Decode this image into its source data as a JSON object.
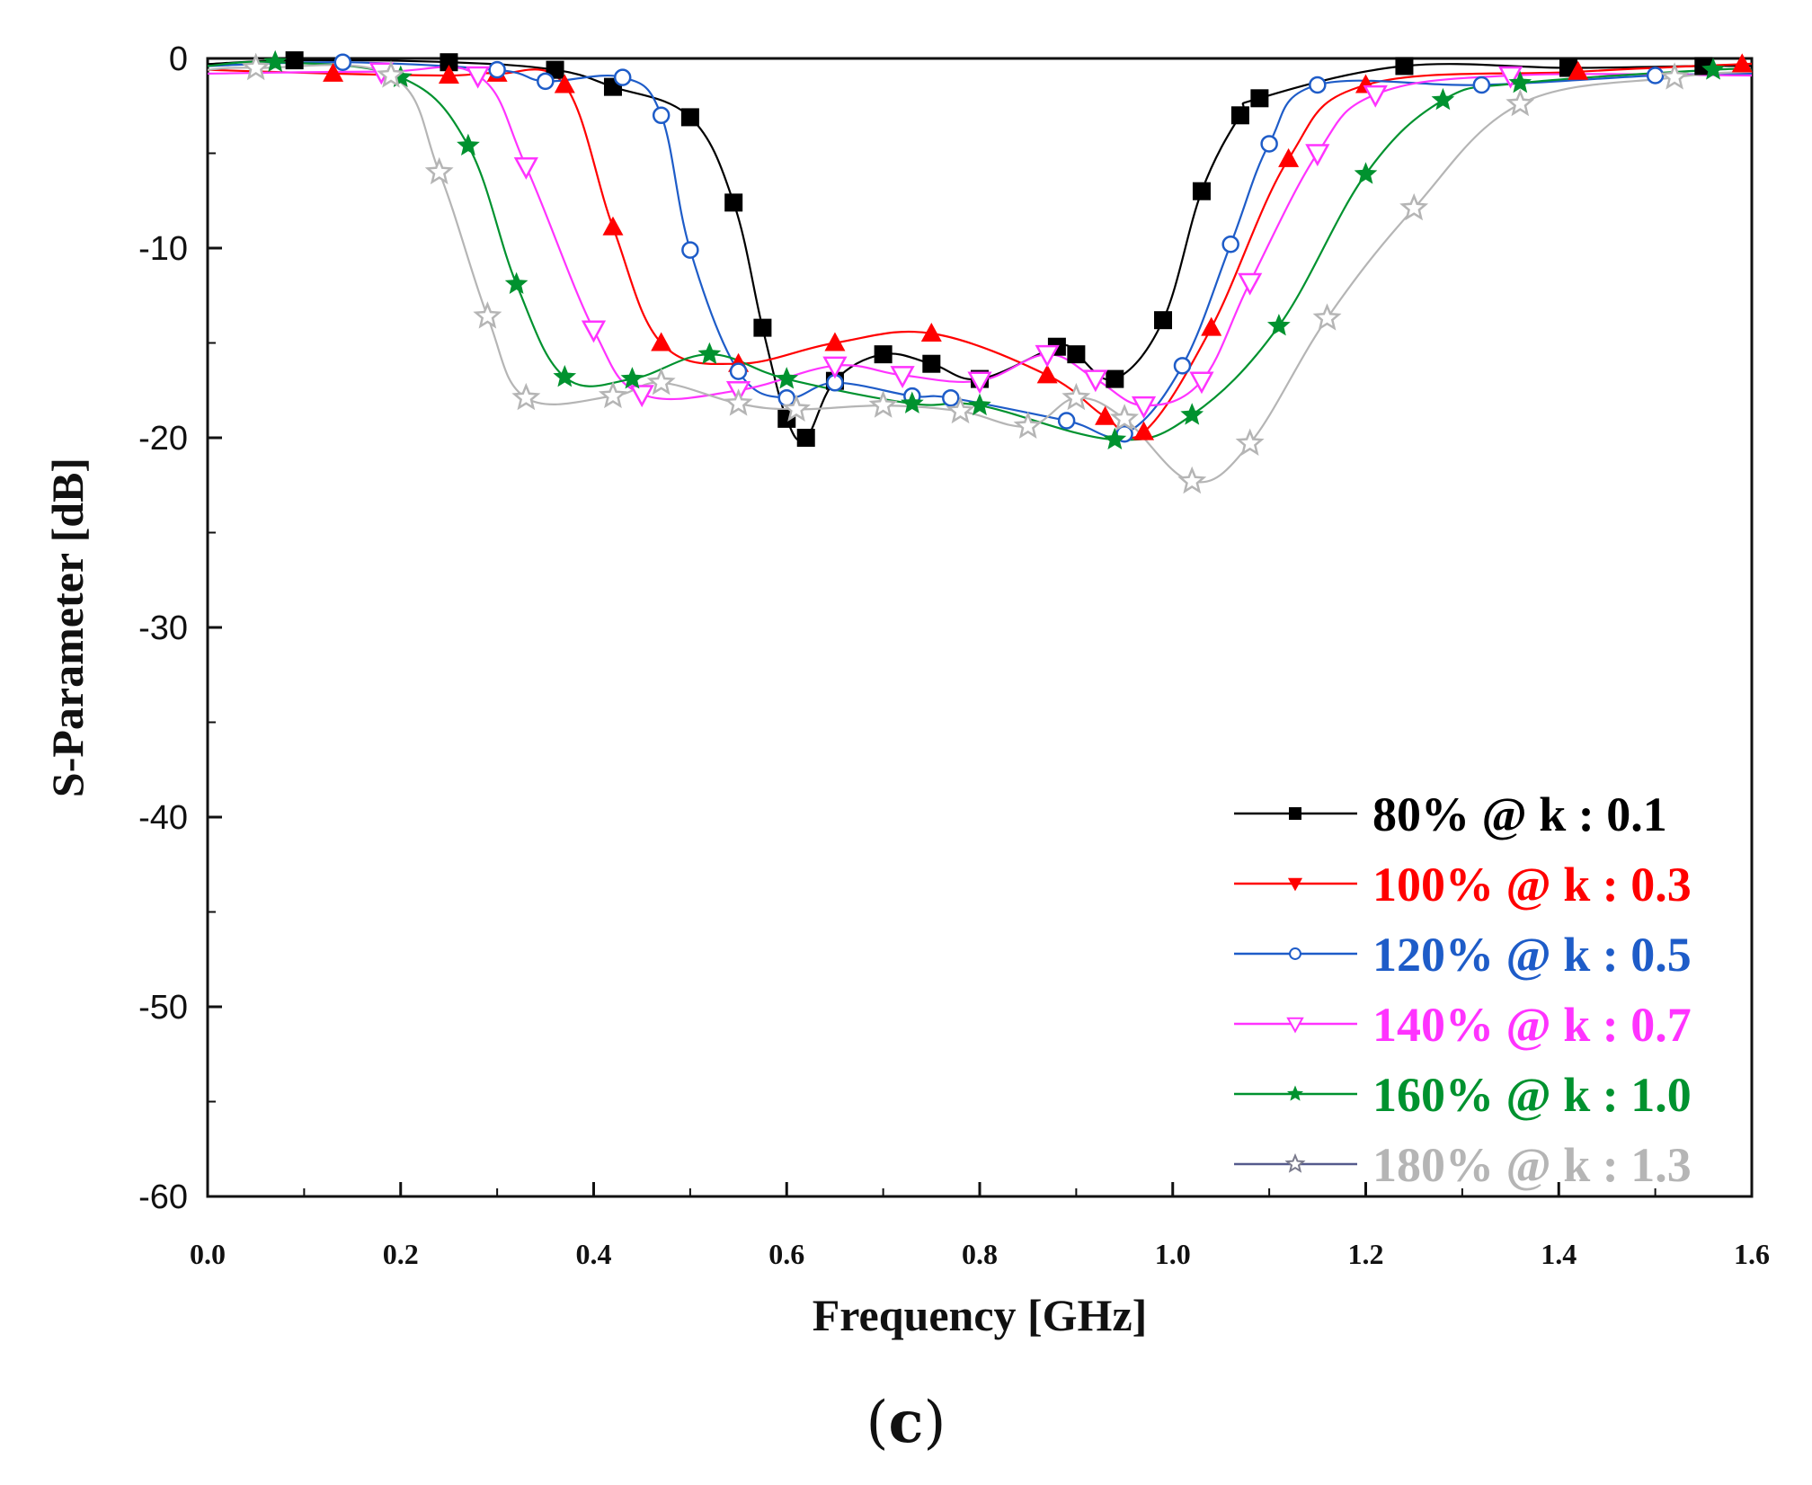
{
  "caption": {
    "open": "(",
    "letter": "c",
    "close": ")"
  },
  "chart_data": {
    "type": "line",
    "title": "",
    "xlabel": "Frequency [GHz]",
    "ylabel": "S-Parameter [dB]",
    "xlim": [
      0.0,
      1.6
    ],
    "ylim": [
      -60,
      0
    ],
    "x_ticks": [
      "0.0",
      "0.2",
      "0.4",
      "0.6",
      "0.8",
      "1.0",
      "1.2",
      "1.4",
      "1.6"
    ],
    "y_ticks": [
      "0",
      "-10",
      "-20",
      "-30",
      "-40",
      "-50",
      "-60"
    ],
    "legend_position": "bottom-right",
    "series": [
      {
        "name": "80% @ k : 0.1",
        "color": "#000000",
        "marker": "square",
        "x": [
          0.0,
          0.09,
          0.25,
          0.36,
          0.42,
          0.5,
          0.545,
          0.575,
          0.6,
          0.62,
          0.65,
          0.7,
          0.75,
          0.8,
          0.88,
          0.9,
          0.94,
          0.99,
          1.03,
          1.07,
          1.09,
          1.24,
          1.41,
          1.55,
          1.6
        ],
        "y": [
          -0.3,
          -0.1,
          -0.2,
          -0.6,
          -1.5,
          -3.1,
          -7.6,
          -14.2,
          -19.0,
          -20.0,
          -17.0,
          -15.6,
          -16.1,
          -16.9,
          -15.2,
          -15.6,
          -16.9,
          -13.8,
          -7.0,
          -3.0,
          -2.1,
          -0.4,
          -0.5,
          -0.4,
          -0.4
        ]
      },
      {
        "name": "100% @ k : 0.3",
        "color": "#ff0000",
        "marker": "triangle-up",
        "x": [
          0.0,
          0.13,
          0.25,
          0.3,
          0.37,
          0.42,
          0.47,
          0.55,
          0.65,
          0.75,
          0.87,
          0.93,
          0.97,
          1.04,
          1.12,
          1.2,
          1.42,
          1.59,
          1.6
        ],
        "y": [
          -0.6,
          -0.8,
          -0.9,
          -0.8,
          -1.4,
          -8.9,
          -15.0,
          -16.1,
          -15.0,
          -14.5,
          -16.7,
          -18.9,
          -19.7,
          -14.2,
          -5.3,
          -1.4,
          -0.7,
          -0.3,
          -0.3
        ]
      },
      {
        "name": "120% @ k : 0.5",
        "color": "#1e5cc8",
        "marker": "circle-open",
        "x": [
          0.0,
          0.14,
          0.3,
          0.35,
          0.43,
          0.47,
          0.5,
          0.55,
          0.6,
          0.65,
          0.73,
          0.77,
          0.89,
          0.95,
          1.01,
          1.06,
          1.1,
          1.15,
          1.32,
          1.5,
          1.6
        ],
        "y": [
          -0.4,
          -0.2,
          -0.6,
          -1.2,
          -1.0,
          -3.0,
          -10.1,
          -16.5,
          -17.9,
          -17.1,
          -17.8,
          -17.9,
          -19.1,
          -19.8,
          -16.2,
          -9.8,
          -4.5,
          -1.4,
          -1.4,
          -0.9,
          -0.8
        ]
      },
      {
        "name": "140% @ k : 0.7",
        "color": "#ff33ff",
        "marker": "triangle-down-open",
        "x": [
          0.0,
          0.18,
          0.28,
          0.33,
          0.4,
          0.45,
          0.55,
          0.65,
          0.72,
          0.8,
          0.87,
          0.92,
          0.97,
          1.03,
          1.08,
          1.15,
          1.21,
          1.35,
          1.6
        ],
        "y": [
          -0.8,
          -0.7,
          -0.9,
          -5.7,
          -14.3,
          -17.7,
          -17.5,
          -16.2,
          -16.7,
          -17.0,
          -15.6,
          -16.9,
          -18.3,
          -17.0,
          -11.8,
          -5.0,
          -1.9,
          -0.9,
          -0.9
        ]
      },
      {
        "name": "160% @ k : 1.0",
        "color": "#00922f",
        "marker": "star",
        "x": [
          0.0,
          0.07,
          0.2,
          0.27,
          0.32,
          0.37,
          0.44,
          0.52,
          0.6,
          0.73,
          0.8,
          0.94,
          1.02,
          1.11,
          1.2,
          1.28,
          1.36,
          1.56,
          1.6
        ],
        "y": [
          -0.4,
          -0.2,
          -1.0,
          -4.6,
          -11.9,
          -16.8,
          -16.9,
          -15.6,
          -16.9,
          -18.2,
          -18.3,
          -20.1,
          -18.8,
          -14.1,
          -6.1,
          -2.2,
          -1.3,
          -0.6,
          -0.6
        ]
      },
      {
        "name": "180% @ k : 1.3",
        "color": "#b5b5b5",
        "marker": "star-open",
        "x": [
          0.0,
          0.05,
          0.19,
          0.24,
          0.29,
          0.33,
          0.42,
          0.47,
          0.55,
          0.61,
          0.7,
          0.78,
          0.85,
          0.9,
          0.95,
          1.02,
          1.08,
          1.16,
          1.25,
          1.36,
          1.52,
          1.6
        ],
        "y": [
          -0.6,
          -0.5,
          -0.9,
          -6.0,
          -13.6,
          -17.9,
          -17.8,
          -17.1,
          -18.2,
          -18.5,
          -18.3,
          -18.6,
          -19.4,
          -17.9,
          -19.0,
          -22.3,
          -20.3,
          -13.7,
          -7.9,
          -2.4,
          -1.0,
          -0.7
        ]
      }
    ]
  }
}
